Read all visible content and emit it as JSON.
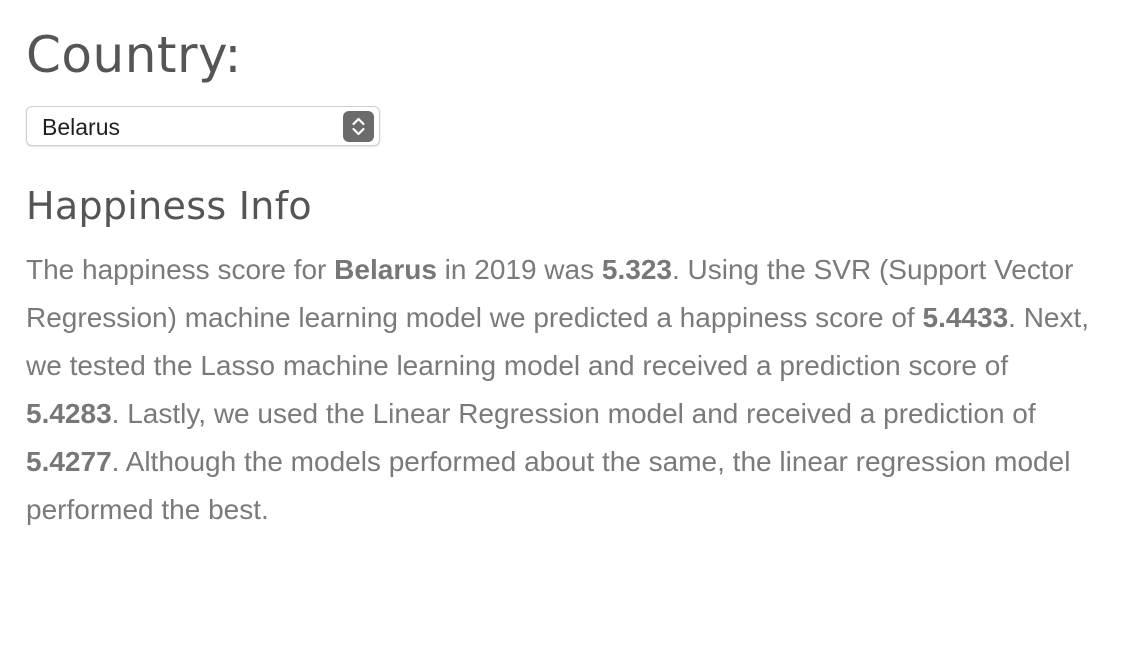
{
  "header": {
    "title": "Country:"
  },
  "country_select": {
    "selected": "Belarus"
  },
  "happiness_info": {
    "heading": "Happiness Info",
    "paragraph": [
      {
        "text": "The happiness score for ",
        "bold": false
      },
      {
        "text": "Belarus",
        "bold": true
      },
      {
        "text": " in 2019 was ",
        "bold": false
      },
      {
        "text": "5.323",
        "bold": true
      },
      {
        "text": ". Using the SVR (Support Vector Regression) machine learning model we predicted a happiness score of ",
        "bold": false
      },
      {
        "text": "5.4433",
        "bold": true
      },
      {
        "text": ". Next, we tested the Lasso machine learning model and received a prediction score of ",
        "bold": false
      },
      {
        "text": "5.4283",
        "bold": true
      },
      {
        "text": ". Lastly, we used the Linear Regression model and received a prediction of ",
        "bold": false
      },
      {
        "text": "5.4277",
        "bold": true
      },
      {
        "text": ". Although the models performed about the same, the linear regression model performed the best.",
        "bold": false
      }
    ]
  },
  "icons": {
    "select_arrows": "up-down-chevron-icon"
  }
}
